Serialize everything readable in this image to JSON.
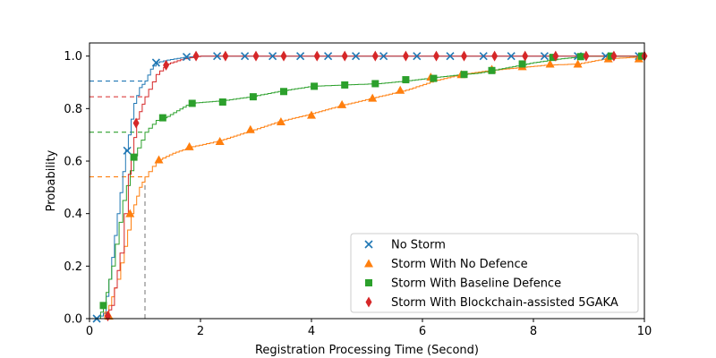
{
  "chart_data": {
    "type": "line",
    "title": "",
    "xlabel": "Registration Processing Time (Second)",
    "ylabel": "Probability",
    "xlim": [
      0,
      10
    ],
    "ylim": [
      0,
      1.05
    ],
    "xticks": [
      0,
      2,
      4,
      6,
      8,
      10
    ],
    "yticks": [
      0.0,
      0.2,
      0.4,
      0.6,
      0.8,
      1.0
    ],
    "xtick_labels": [
      "0",
      "2",
      "4",
      "6",
      "8",
      "10"
    ],
    "ytick_labels": [
      "0.0",
      "0.2",
      "0.4",
      "0.6",
      "0.8",
      "1.0"
    ],
    "grid": false,
    "legend_position": "bottom-right",
    "reference": {
      "x": 1.0,
      "levels": [
        {
          "series": "No Storm",
          "y": 0.905
        },
        {
          "series": "Storm With Blockchain-assisted 5GAKA",
          "y": 0.845
        },
        {
          "series": "Storm With Baseline Defence",
          "y": 0.71
        },
        {
          "series": "Storm With No Defence",
          "y": 0.54
        }
      ]
    },
    "series": [
      {
        "name": "No Storm",
        "color": "#1f77b4",
        "marker": "x",
        "curve": [
          [
            0.15,
            0
          ],
          [
            0.25,
            0.02
          ],
          [
            0.35,
            0.15
          ],
          [
            0.5,
            0.4
          ],
          [
            0.65,
            0.64
          ],
          [
            0.8,
            0.82
          ],
          [
            0.9,
            0.88
          ],
          [
            1.0,
            0.905
          ],
          [
            1.1,
            0.95
          ],
          [
            1.2,
            0.975
          ],
          [
            1.4,
            0.985
          ],
          [
            1.7,
            0.995
          ],
          [
            2.0,
            1.0
          ],
          [
            10,
            1.0
          ]
        ],
        "markers": [
          [
            0.13,
            0.0
          ],
          [
            0.68,
            0.64
          ],
          [
            1.2,
            0.975
          ],
          [
            1.75,
            0.997
          ],
          [
            2.3,
            1.0
          ],
          [
            2.8,
            1.0
          ],
          [
            3.3,
            1.0
          ],
          [
            3.8,
            1.0
          ],
          [
            4.3,
            1.0
          ],
          [
            4.8,
            1.0
          ],
          [
            5.3,
            1.0
          ],
          [
            5.9,
            1.0
          ],
          [
            6.5,
            1.0
          ],
          [
            7.1,
            1.0
          ],
          [
            7.6,
            1.0
          ],
          [
            8.2,
            1.0
          ],
          [
            8.8,
            1.0
          ],
          [
            9.3,
            1.0
          ],
          [
            9.9,
            1.0
          ]
        ]
      },
      {
        "name": "Storm With No Defence",
        "color": "#ff7f0e",
        "marker": "^",
        "curve": [
          [
            0.2,
            0
          ],
          [
            0.35,
            0.05
          ],
          [
            0.5,
            0.15
          ],
          [
            0.75,
            0.4
          ],
          [
            0.9,
            0.5
          ],
          [
            1.0,
            0.54
          ],
          [
            1.2,
            0.6
          ],
          [
            1.5,
            0.63
          ],
          [
            1.85,
            0.655
          ],
          [
            2.3,
            0.675
          ],
          [
            2.9,
            0.715
          ],
          [
            3.4,
            0.75
          ],
          [
            3.9,
            0.775
          ],
          [
            4.6,
            0.815
          ],
          [
            5.1,
            0.84
          ],
          [
            5.7,
            0.87
          ],
          [
            6.2,
            0.905
          ],
          [
            6.7,
            0.93
          ],
          [
            7.2,
            0.945
          ],
          [
            7.7,
            0.955
          ],
          [
            8.2,
            0.965
          ],
          [
            8.8,
            0.97
          ],
          [
            9.3,
            0.99
          ],
          [
            9.8,
            0.995
          ],
          [
            10,
            1.0
          ]
        ],
        "markers": [
          [
            0.35,
            0.01
          ],
          [
            0.73,
            0.4
          ],
          [
            1.25,
            0.605
          ],
          [
            1.8,
            0.655
          ],
          [
            2.35,
            0.675
          ],
          [
            2.9,
            0.72
          ],
          [
            3.45,
            0.75
          ],
          [
            4.0,
            0.775
          ],
          [
            4.55,
            0.815
          ],
          [
            5.1,
            0.84
          ],
          [
            5.6,
            0.87
          ],
          [
            6.15,
            0.92
          ],
          [
            6.7,
            0.93
          ],
          [
            7.25,
            0.95
          ],
          [
            7.8,
            0.96
          ],
          [
            8.3,
            0.97
          ],
          [
            8.8,
            0.97
          ],
          [
            9.35,
            0.99
          ],
          [
            9.9,
            0.99
          ]
        ]
      },
      {
        "name": "Storm With Baseline Defence",
        "color": "#2ca02c",
        "marker": "s",
        "curve": [
          [
            0.15,
            0
          ],
          [
            0.25,
            0.05
          ],
          [
            0.4,
            0.2
          ],
          [
            0.6,
            0.45
          ],
          [
            0.8,
            0.62
          ],
          [
            1.0,
            0.71
          ],
          [
            1.2,
            0.755
          ],
          [
            1.4,
            0.77
          ],
          [
            1.8,
            0.82
          ],
          [
            2.4,
            0.83
          ],
          [
            2.9,
            0.845
          ],
          [
            3.4,
            0.865
          ],
          [
            4.0,
            0.885
          ],
          [
            4.6,
            0.89
          ],
          [
            5.2,
            0.895
          ],
          [
            5.7,
            0.905
          ],
          [
            6.1,
            0.915
          ],
          [
            6.5,
            0.925
          ],
          [
            7.0,
            0.935
          ],
          [
            7.5,
            0.955
          ],
          [
            8.0,
            0.975
          ],
          [
            8.5,
            0.99
          ],
          [
            9.0,
            1.0
          ],
          [
            10,
            1.0
          ]
        ],
        "markers": [
          [
            0.25,
            0.05
          ],
          [
            0.8,
            0.615
          ],
          [
            1.32,
            0.765
          ],
          [
            1.85,
            0.82
          ],
          [
            2.4,
            0.825
          ],
          [
            2.95,
            0.845
          ],
          [
            3.5,
            0.865
          ],
          [
            4.05,
            0.885
          ],
          [
            4.6,
            0.89
          ],
          [
            5.15,
            0.895
          ],
          [
            5.7,
            0.91
          ],
          [
            6.2,
            0.915
          ],
          [
            6.75,
            0.93
          ],
          [
            7.25,
            0.945
          ],
          [
            7.8,
            0.97
          ],
          [
            8.35,
            0.995
          ],
          [
            8.85,
            0.998
          ],
          [
            9.4,
            1.0
          ],
          [
            9.95,
            1.0
          ]
        ]
      },
      {
        "name": "Storm With Blockchain-assisted 5GAKA",
        "color": "#d62728",
        "marker": "d",
        "curve": [
          [
            0.25,
            0
          ],
          [
            0.4,
            0.05
          ],
          [
            0.55,
            0.25
          ],
          [
            0.7,
            0.55
          ],
          [
            0.85,
            0.76
          ],
          [
            1.0,
            0.845
          ],
          [
            1.2,
            0.93
          ],
          [
            1.4,
            0.97
          ],
          [
            1.7,
            0.99
          ],
          [
            2.0,
            1.0
          ],
          [
            10,
            1.0
          ]
        ],
        "markers": [
          [
            0.33,
            0.01
          ],
          [
            0.84,
            0.745
          ],
          [
            1.38,
            0.965
          ],
          [
            1.92,
            1.0
          ],
          [
            2.45,
            1.0
          ],
          [
            3.0,
            1.0
          ],
          [
            3.5,
            1.0
          ],
          [
            4.1,
            1.0
          ],
          [
            4.6,
            1.0
          ],
          [
            5.15,
            1.0
          ],
          [
            5.7,
            1.0
          ],
          [
            6.25,
            1.0
          ],
          [
            6.75,
            1.0
          ],
          [
            7.3,
            1.0
          ],
          [
            7.85,
            1.0
          ],
          [
            8.4,
            1.0
          ],
          [
            8.95,
            1.0
          ],
          [
            9.45,
            1.0
          ],
          [
            10.0,
            1.0
          ]
        ]
      }
    ]
  }
}
